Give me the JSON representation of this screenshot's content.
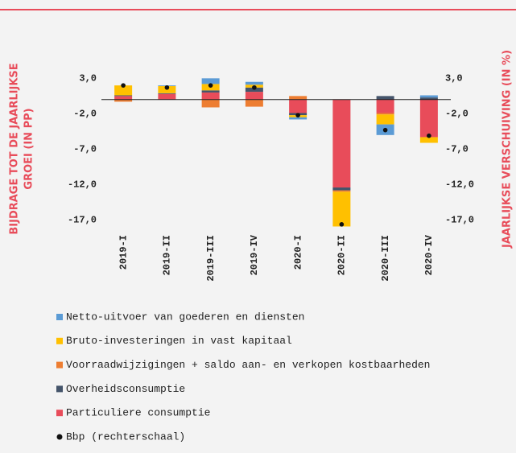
{
  "chart_data": {
    "type": "stacked_bar",
    "y_label": [
      "BIJDRAGE TOT DE JAARLIJKSE",
      "GROEI (IN PP)"
    ],
    "y2_label": "JAARLIJKSE VERSCHUIVING (IN %)",
    "categories": [
      "2019-I",
      "2019-II",
      "2019-III",
      "2019-IV",
      "2020-I",
      "2020-II",
      "2020-III",
      "2020-IV"
    ],
    "series": [
      {
        "name": "Netto-uitvoer van goederen en diensten",
        "color": "#5b9bd5",
        "values": [
          0,
          0.1,
          0.8,
          0.4,
          -0.3,
          0,
          -1.5,
          0.3
        ]
      },
      {
        "name": "Bruto-investeringen in vast kapitaal",
        "color": "#ffc000",
        "values": [
          1.4,
          1.0,
          0.9,
          0.4,
          -0.3,
          -4.9,
          -1.4,
          -0.8
        ]
      },
      {
        "name": "Voorraadwijzigingen + saldo aan- en verkopen kostbaarheden",
        "color": "#ed7d31",
        "values": [
          -0.3,
          0,
          -1.1,
          -1.0,
          0.5,
          -0.2,
          -0.2,
          0
        ]
      },
      {
        "name": "Overheidsconsumptie",
        "color": "#44546a",
        "values": [
          0.1,
          0.1,
          0.3,
          0.6,
          -0.3,
          -0.4,
          0.5,
          0.3
        ]
      },
      {
        "name": "Particuliere consumptie",
        "color": "#e84c5a",
        "values": [
          0.5,
          0.8,
          1.0,
          1.1,
          -1.9,
          -12.4,
          -1.9,
          -5.3
        ]
      },
      {
        "name": "Bbp (rechterschaal)",
        "color": "#111111",
        "axis": "y2",
        "type": "marker",
        "values": [
          2.0,
          1.7,
          2.0,
          1.7,
          -2.2,
          -17.6,
          -4.3,
          -5.1
        ]
      }
    ],
    "ylim": [
      -18.3,
      4.4
    ],
    "yticks": [
      {
        "value": 3,
        "label": "3,0"
      },
      {
        "value": -2,
        "label": "-2,0"
      },
      {
        "value": -7,
        "label": "-7,0"
      },
      {
        "value": -12,
        "label": "-12,0"
      },
      {
        "value": -17,
        "label": "-17,0"
      }
    ],
    "y2lim": [
      -18.3,
      4.4
    ],
    "y2ticks": [
      {
        "value": 3,
        "label": "3,0"
      },
      {
        "value": -2,
        "label": "-2,0"
      },
      {
        "value": -7,
        "label": "-7,0"
      },
      {
        "value": -12,
        "label": "-12,0"
      },
      {
        "value": -17,
        "label": "-17,0"
      }
    ]
  }
}
